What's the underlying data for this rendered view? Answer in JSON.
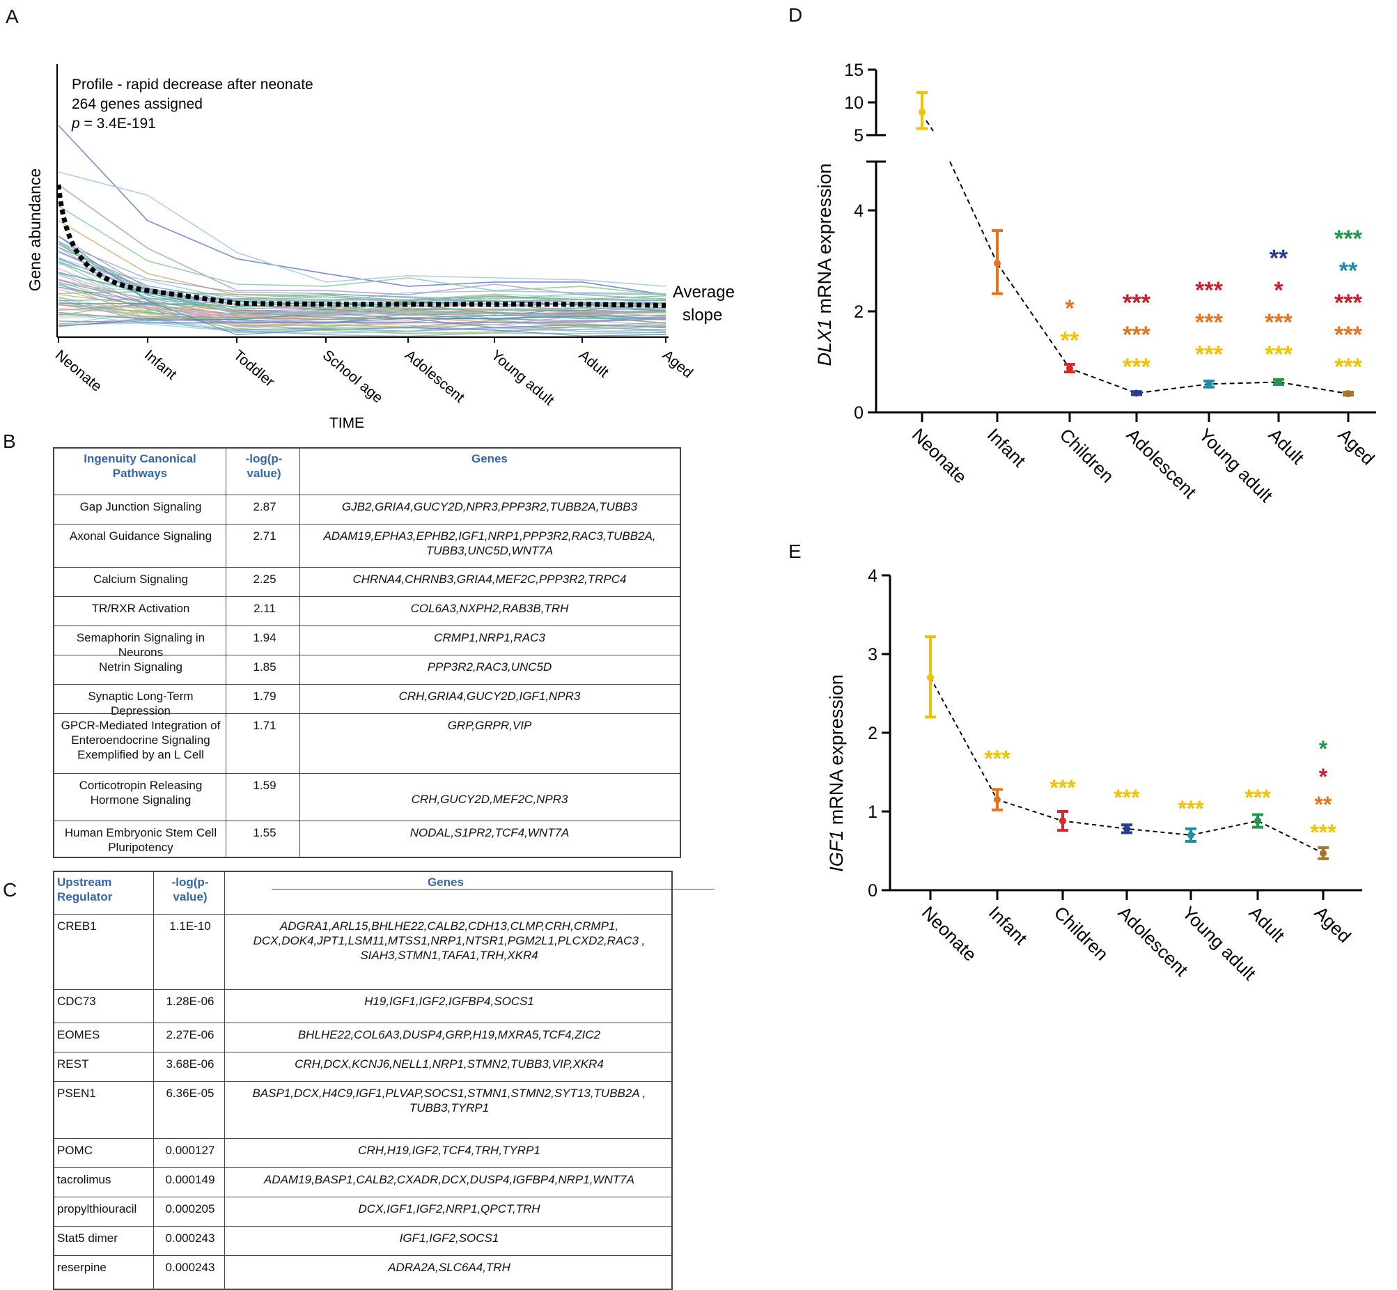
{
  "panel_labels": {
    "a": "A",
    "b": "B",
    "c": "C",
    "d": "D",
    "e": "E"
  },
  "panel_a": {
    "annotation_line1": "Profile - rapid decrease after neonate",
    "annotation_line2": "264 genes assigned",
    "annotation_p_symbol": "p",
    "annotation_p_value": " = 3.4E-191",
    "ylabel": "Gene abundance",
    "xlabel": "TIME",
    "avg_label_line1": "Average",
    "avg_label_line2": "slope",
    "categories": [
      "Neonate",
      "Infant",
      "Toddler",
      "School age",
      "Adolescent",
      "Young adult",
      "Adult",
      "Aged"
    ]
  },
  "table_b": {
    "headers": {
      "pathway": "Ingenuity Canonical Pathways",
      "logp": "-log(p-value)",
      "genes": "Genes"
    },
    "rows": [
      {
        "pathway": "Gap Junction Signaling",
        "logp": "2.87",
        "genes": "GJB2,GRIA4,GUCY2D,NPR3,PPP3R2,TUBB2A,TUBB3"
      },
      {
        "pathway": "Axonal Guidance Signaling",
        "logp": "2.71",
        "genes": "ADAM19,EPHA3,EPHB2,IGF1,NRP1,PPP3R2,RAC3,TUBB2A, TUBB3,UNC5D,WNT7A"
      },
      {
        "pathway": "Calcium Signaling",
        "logp": "2.25",
        "genes": "CHRNA4,CHRNB3,GRIA4,MEF2C,PPP3R2,TRPC4"
      },
      {
        "pathway": "TR/RXR Activation",
        "logp": "2.11",
        "genes": "COL6A3,NXPH2,RAB3B,TRH"
      },
      {
        "pathway": "Semaphorin Signaling in Neurons",
        "logp": "1.94",
        "genes": "CRMP1,NRP1,RAC3"
      },
      {
        "pathway": "Netrin Signaling",
        "logp": "1.85",
        "genes": "PPP3R2,RAC3,UNC5D"
      },
      {
        "pathway": "Synaptic Long-Term Depression",
        "logp": "1.79",
        "genes": "CRH,GRIA4,GUCY2D,IGF1,NPR3"
      },
      {
        "pathway": "GPCR-Mediated Integration of Enteroendocrine Signaling Exemplified by an L Cell",
        "logp": "1.71",
        "genes": "GRP,GRPR,VIP"
      },
      {
        "pathway": "Corticotropin Releasing Hormone Signaling",
        "logp": "1.59",
        "genes": "CRH,GUCY2D,MEF2C,NPR3"
      },
      {
        "pathway": "Human Embryonic Stem Cell Pluripotency",
        "logp": "1.55",
        "genes": "NODAL,S1PR2,TCF4,WNT7A"
      }
    ]
  },
  "table_c": {
    "headers": {
      "regulator": "Upstream Regulator",
      "logp": "-log(p-value)",
      "genes": "Genes"
    },
    "rows": [
      {
        "regulator": "CREB1",
        "logp": "1.1E-10",
        "genes": "ADGRA1,ARL15,BHLHE22,CALB2,CDH13,CLMP,CRH,CRMP1, DCX,DOK4,JPT1,LSM11,MTSS1,NRP1,NTSR1,PGM2L1,PLCXD2,RAC3 , SIAH3,STMN1,TAFA1,TRH,XKR4"
      },
      {
        "regulator": "CDC73",
        "logp": "1.28E-06",
        "genes": "H19,IGF1,IGF2,IGFBP4,SOCS1"
      },
      {
        "regulator": "EOMES",
        "logp": "2.27E-06",
        "genes": "BHLHE22,COL6A3,DUSP4,GRP,H19,MXRA5,TCF4,ZIC2"
      },
      {
        "regulator": "REST",
        "logp": "3.68E-06",
        "genes": "CRH,DCX,KCNJ6,NELL1,NRP1,STMN2,TUBB3,VIP,XKR4"
      },
      {
        "regulator": "PSEN1",
        "logp": "6.36E-05",
        "genes": "BASP1,DCX,H4C9,IGF1,PLVAP,SOCS1,STMN1,STMN2,SYT13,TUBB2A , TUBB3,TYRP1"
      },
      {
        "regulator": "POMC",
        "logp": "0.000127",
        "genes": "CRH,H19,IGF2,TCF4,TRH,TYRP1"
      },
      {
        "regulator": "tacrolimus",
        "logp": "0.000149",
        "genes": "ADAM19,BASP1,CALB2,CXADR,DCX,DUSP4,IGFBP4,NRP1,WNT7A"
      },
      {
        "regulator": "propylthiouracil",
        "logp": "0.000205",
        "genes": "DCX,IGF1,IGF2,NRP1,QPCT,TRH"
      },
      {
        "regulator": "Stat5 dimer",
        "logp": "0.000243",
        "genes": "IGF1,IGF2,SOCS1"
      },
      {
        "regulator": "reserpine",
        "logp": "0.000243",
        "genes": "ADRA2A,SLC6A4,TRH"
      }
    ]
  },
  "chart_data": [
    {
      "type": "line",
      "id": "panel_a",
      "title": "Profile - rapid decrease after neonate",
      "xlabel": "TIME",
      "ylabel": "Gene abundance",
      "categories": [
        "Neonate",
        "Infant",
        "Toddler",
        "School age",
        "Adolescent",
        "Young adult",
        "Adult",
        "Aged"
      ],
      "series": [
        {
          "name": "Average slope",
          "values": [
            0.72,
            0.22,
            0.16,
            0.155,
            0.155,
            0.155,
            0.155,
            0.15
          ]
        }
      ]
    },
    {
      "type": "line",
      "id": "panel_d",
      "ylabel_gene": "DLX1",
      "ylabel_rest": " mRNA expression",
      "categories": [
        "Neonate",
        "Infant",
        "Children",
        "Adolescent",
        "Young adult",
        "Adult",
        "Aged"
      ],
      "values": [
        8.5,
        2.95,
        0.87,
        0.38,
        0.56,
        0.6,
        0.37
      ],
      "err_low": [
        6.0,
        2.35,
        0.8,
        0.35,
        0.5,
        0.55,
        0.34
      ],
      "err_high": [
        11.5,
        3.6,
        0.95,
        0.41,
        0.62,
        0.65,
        0.4
      ],
      "lower_ticks": [
        "0",
        "2",
        "4"
      ],
      "upper_ticks": [
        "5",
        "10",
        "15"
      ],
      "colors": [
        "#f2c200",
        "#e8731c",
        "#d42a2a",
        "#283c96",
        "#1a8fa8",
        "#1e9a4a",
        "#a5752a"
      ],
      "significance": [
        [],
        [],
        [
          {
            "text": "*",
            "color": "#e8731c"
          },
          {
            "text": "**",
            "color": "#f2c200"
          }
        ],
        [
          {
            "text": "***",
            "color": "#c81e2a"
          },
          {
            "text": "***",
            "color": "#e8731c"
          },
          {
            "text": "***",
            "color": "#f2c200"
          }
        ],
        [
          {
            "text": "***",
            "color": "#c81e2a"
          },
          {
            "text": "***",
            "color": "#e8731c"
          },
          {
            "text": "***",
            "color": "#f2c200"
          }
        ],
        [
          {
            "text": "**",
            "color": "#283c96"
          },
          {
            "text": "*",
            "color": "#c81e2a"
          },
          {
            "text": "***",
            "color": "#e8731c"
          },
          {
            "text": "***",
            "color": "#f2c200"
          }
        ],
        [
          {
            "text": "***",
            "color": "#1e9a4a"
          },
          {
            "text": "**",
            "color": "#1a8fa8"
          },
          {
            "text": "***",
            "color": "#c81e2a"
          },
          {
            "text": "***",
            "color": "#e8731c"
          },
          {
            "text": "***",
            "color": "#f2c200"
          }
        ]
      ]
    },
    {
      "type": "line",
      "id": "panel_e",
      "ylabel_gene": "IGF1",
      "ylabel_rest": " mRNA expression",
      "categories": [
        "Neonate",
        "Infant",
        "Children",
        "Adolescent",
        "Young adult",
        "Adult",
        "Aged"
      ],
      "values": [
        2.7,
        1.15,
        0.88,
        0.78,
        0.7,
        0.88,
        0.47
      ],
      "err_low": [
        2.2,
        1.02,
        0.76,
        0.73,
        0.62,
        0.8,
        0.4
      ],
      "err_high": [
        3.22,
        1.28,
        1.0,
        0.83,
        0.78,
        0.96,
        0.54
      ],
      "ticks": [
        "0",
        "1",
        "2",
        "3",
        "4"
      ],
      "ylim": [
        0,
        4
      ],
      "colors": [
        "#f2c200",
        "#e8731c",
        "#d42a2a",
        "#283c96",
        "#1a8fa8",
        "#1e9a4a",
        "#a5752a"
      ],
      "significance": [
        [],
        [
          {
            "text": "***",
            "color": "#f2c200"
          }
        ],
        [
          {
            "text": "***",
            "color": "#f2c200"
          }
        ],
        [
          {
            "text": "***",
            "color": "#f2c200"
          }
        ],
        [
          {
            "text": "***",
            "color": "#f2c200"
          }
        ],
        [
          {
            "text": "***",
            "color": "#f2c200"
          }
        ],
        [
          {
            "text": "*",
            "color": "#1e9a4a"
          },
          {
            "text": "*",
            "color": "#c81e2a"
          },
          {
            "text": "**",
            "color": "#e8731c"
          },
          {
            "text": "***",
            "color": "#f2c200"
          }
        ]
      ]
    }
  ]
}
